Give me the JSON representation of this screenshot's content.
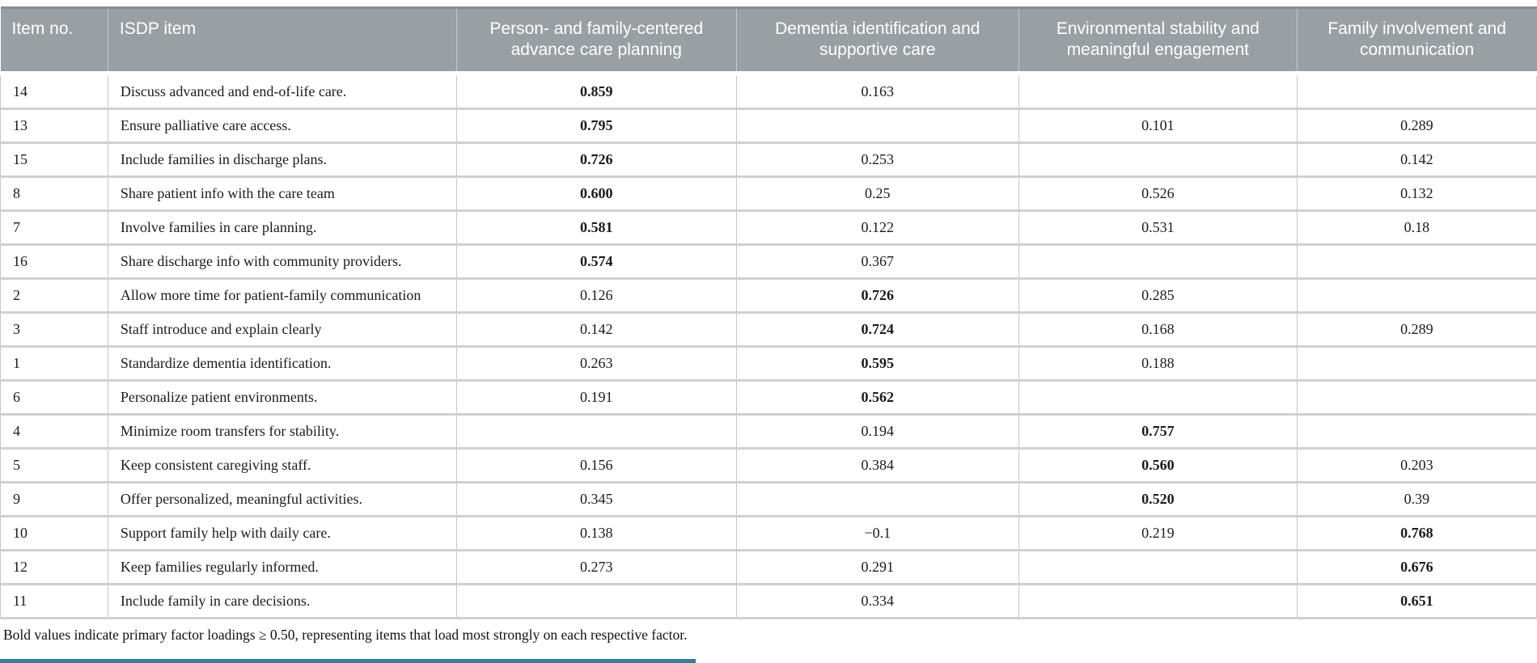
{
  "colors": {
    "header_bg": "#999fa3",
    "header_text": "#ffffff",
    "grid_line": "#c6c6c6",
    "accent_bar": "#3a7a9c"
  },
  "table": {
    "columns": [
      {
        "key": "item_no",
        "label": "Item no.",
        "align": "left"
      },
      {
        "key": "isdp_item",
        "label": "ISDP item",
        "align": "left"
      },
      {
        "key": "factor1",
        "label": "Person- and family-centered advance care planning",
        "align": "center"
      },
      {
        "key": "factor2",
        "label": "Dementia identification and supportive care",
        "align": "center"
      },
      {
        "key": "factor3",
        "label": "Environmental stability and meaningful engagement",
        "align": "center"
      },
      {
        "key": "factor4",
        "label": "Family involvement and communication",
        "align": "center"
      }
    ],
    "rows": [
      {
        "item_no": "14",
        "item": "Discuss advanced and end-of-life care.",
        "values": [
          "0.859",
          "0.163",
          "",
          ""
        ],
        "bold_value_index": 0
      },
      {
        "item_no": "13",
        "item": "Ensure palliative care access.",
        "values": [
          "0.795",
          "",
          "0.101",
          "0.289"
        ],
        "bold_value_index": 0
      },
      {
        "item_no": "15",
        "item": "Include families in discharge plans.",
        "values": [
          "0.726",
          "0.253",
          "",
          "0.142"
        ],
        "bold_value_index": 0
      },
      {
        "item_no": "8",
        "item": "Share patient info with the care team",
        "values": [
          "0.600",
          "0.25",
          "0.526",
          "0.132"
        ],
        "bold_value_index": 0
      },
      {
        "item_no": "7",
        "item": "Involve families in care planning.",
        "values": [
          "0.581",
          "0.122",
          "0.531",
          "0.18"
        ],
        "bold_value_index": 0
      },
      {
        "item_no": "16",
        "item": "Share discharge info with community providers.",
        "values": [
          "0.574",
          "0.367",
          "",
          ""
        ],
        "bold_value_index": 0
      },
      {
        "item_no": "2",
        "item": "Allow more time for patient-family communication",
        "values": [
          "0.126",
          "0.726",
          "0.285",
          ""
        ],
        "bold_value_index": 1
      },
      {
        "item_no": "3",
        "item": "Staff introduce and explain clearly",
        "values": [
          "0.142",
          "0.724",
          "0.168",
          "0.289"
        ],
        "bold_value_index": 1
      },
      {
        "item_no": "1",
        "item": "Standardize dementia identification.",
        "values": [
          "0.263",
          "0.595",
          "0.188",
          ""
        ],
        "bold_value_index": 1
      },
      {
        "item_no": "6",
        "item": "Personalize patient environments.",
        "values": [
          "0.191",
          "0.562",
          "",
          ""
        ],
        "bold_value_index": 1
      },
      {
        "item_no": "4",
        "item": "Minimize room transfers for stability.",
        "values": [
          "",
          "0.194",
          "0.757",
          ""
        ],
        "bold_value_index": 2
      },
      {
        "item_no": "5",
        "item": "Keep consistent caregiving staff.",
        "values": [
          "0.156",
          "0.384",
          "0.560",
          "0.203"
        ],
        "bold_value_index": 2
      },
      {
        "item_no": "9",
        "item": "Offer personalized, meaningful activities.",
        "values": [
          "0.345",
          "",
          "0.520",
          "0.39"
        ],
        "bold_value_index": 2
      },
      {
        "item_no": "10",
        "item": "Support family help with daily care.",
        "values": [
          "0.138",
          "−0.1",
          "0.219",
          "0.768"
        ],
        "bold_value_index": 3
      },
      {
        "item_no": "12",
        "item": "Keep families regularly informed.",
        "values": [
          "0.273",
          "0.291",
          "",
          "0.676"
        ],
        "bold_value_index": 3
      },
      {
        "item_no": "11",
        "item": "Include family in care decisions.",
        "values": [
          "",
          "0.334",
          "",
          "0.651"
        ],
        "bold_value_index": 3
      }
    ],
    "footnote": "Bold values indicate primary factor loadings ≥ 0.50, representing items that load most strongly on each respective factor."
  }
}
